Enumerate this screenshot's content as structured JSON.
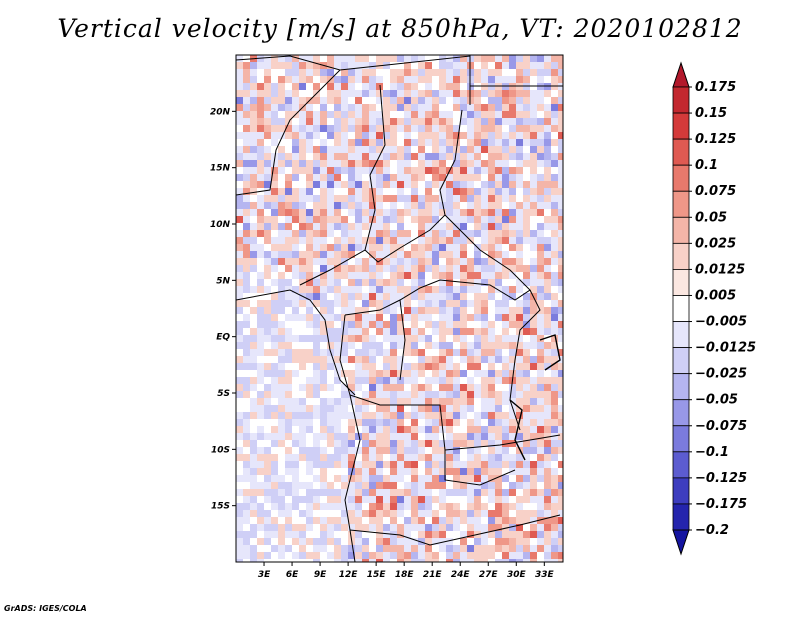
{
  "chart_data": {
    "type": "heatmap",
    "title": "Vertical velocity [m/s] at 850hPa, VT: 2020102812",
    "variable": "Vertical velocity",
    "units": "m/s",
    "level": "850hPa",
    "valid_time": "2020102812",
    "lon_range": [
      0,
      35
    ],
    "lat_range": [
      -20,
      25
    ],
    "x_ticks": [
      "3E",
      "6E",
      "9E",
      "12E",
      "15E",
      "18E",
      "21E",
      "24E",
      "27E",
      "30E",
      "33E"
    ],
    "x_tick_values": [
      3,
      6,
      9,
      12,
      15,
      18,
      21,
      24,
      27,
      30,
      33
    ],
    "y_ticks": [
      "20N",
      "15N",
      "10N",
      "5N",
      "EQ",
      "5S",
      "10S",
      "15S"
    ],
    "y_tick_values": [
      20,
      15,
      10,
      5,
      0,
      -5,
      -10,
      -15
    ],
    "colorbar": {
      "levels": [
        "0.175",
        "0.15",
        "0.125",
        "0.1",
        "0.075",
        "0.05",
        "0.025",
        "0.0125",
        "0.005",
        "−0.005",
        "−0.0125",
        "−0.025",
        "−0.05",
        "−0.075",
        "−0.1",
        "−0.125",
        "−0.175",
        "−0.2"
      ],
      "colors": [
        "#b2182b",
        "#c3282f",
        "#d43a3a",
        "#df5a52",
        "#e8796c",
        "#ef9788",
        "#f4b5a8",
        "#f8d1c8",
        "#fbe7e1",
        "#ffffff",
        "#e6e6fb",
        "#cfcff6",
        "#b5b5f0",
        "#9898e8",
        "#7b7bdd",
        "#5c5cd0",
        "#3d3dbf",
        "#2424ad",
        "#1414a0"
      ]
    },
    "dominant_pattern": "mixed small-scale upward (red) and downward (blue) motion over Central Africa; weaker blue over the Atlantic"
  },
  "credit": "GrADS: IGES/COLA"
}
